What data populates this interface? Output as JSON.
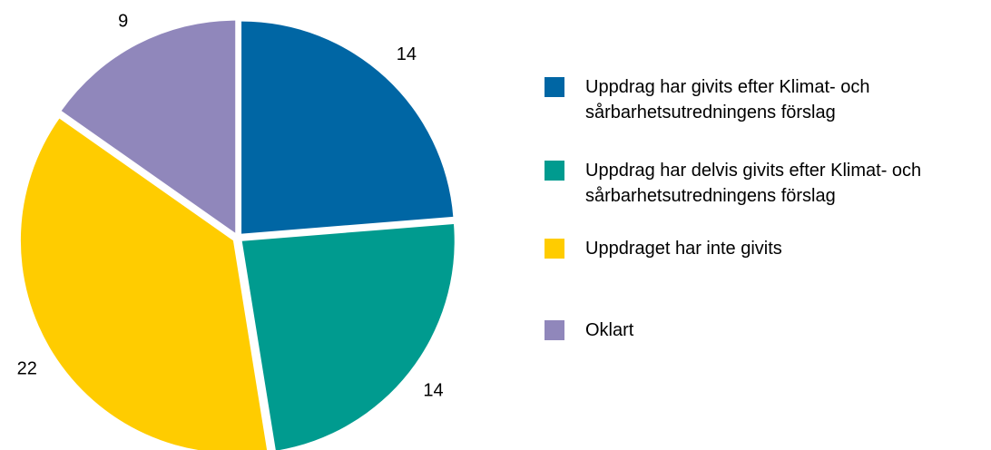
{
  "chart_data": {
    "type": "pie",
    "categories": [
      "Uppdrag har givits efter Klimat- och sårbarhetsutredningens förslag",
      "Uppdrag har delvis givits efter Klimat- och sårbarhetsutredningens förslag",
      "Uppdraget har inte givits",
      "Oklart"
    ],
    "values": [
      14,
      14,
      22,
      9
    ],
    "colors": [
      "#0066a4",
      "#009b8f",
      "#ffcc00",
      "#9087bb"
    ],
    "legend": "right"
  }
}
